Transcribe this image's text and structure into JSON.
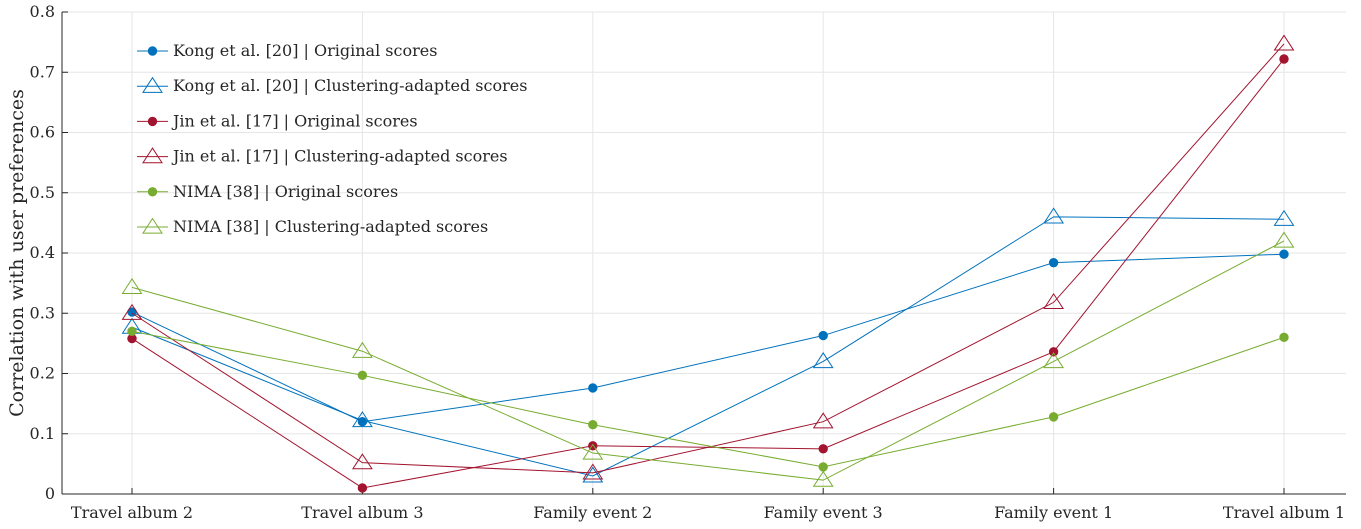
{
  "chart_data": {
    "type": "line",
    "title": "",
    "xlabel": "",
    "ylabel": "Correlation with user preferences",
    "ylim": [
      0,
      0.8
    ],
    "yticks": [
      0,
      0.1,
      0.2,
      0.3,
      0.4,
      0.5,
      0.6,
      0.7,
      0.8
    ],
    "ytick_labels": [
      "0",
      "0.1",
      "0.2",
      "0.3",
      "0.4",
      "0.5",
      "0.6",
      "0.7",
      "0.8"
    ],
    "grid": true,
    "legend_position": "top-left",
    "categories": [
      "Travel album 2",
      "Travel album 3",
      "Family event 2",
      "Family event 3",
      "Family event 1",
      "Travel album 1"
    ],
    "series": [
      {
        "name": "Kong et al. [20] | Original scores",
        "color": "#0072BD",
        "marker": "dot",
        "values": [
          0.302,
          0.12,
          0.176,
          0.263,
          0.384,
          0.398
        ]
      },
      {
        "name": "Kong et al. [20] | Clustering-adapted scores",
        "color": "#0072BD",
        "marker": "triangle",
        "values": [
          0.277,
          0.122,
          0.03,
          0.22,
          0.46,
          0.456
        ]
      },
      {
        "name": "Jin et al. [17] | Original scores",
        "color": "#A2142F",
        "marker": "dot",
        "values": [
          0.258,
          0.01,
          0.08,
          0.075,
          0.236,
          0.722
        ]
      },
      {
        "name": "Jin et al. [17] | Clustering-adapted scores",
        "color": "#A2142F",
        "marker": "triangle",
        "values": [
          0.3,
          0.052,
          0.035,
          0.12,
          0.318,
          0.747
        ]
      },
      {
        "name": "NIMA [38] | Original scores",
        "color": "#77AC30",
        "marker": "dot",
        "values": [
          0.27,
          0.197,
          0.115,
          0.045,
          0.128,
          0.26
        ]
      },
      {
        "name": "NIMA [38] | Clustering-adapted scores",
        "color": "#77AC30",
        "marker": "triangle",
        "values": [
          0.343,
          0.237,
          0.068,
          0.023,
          0.22,
          0.42
        ]
      }
    ]
  }
}
